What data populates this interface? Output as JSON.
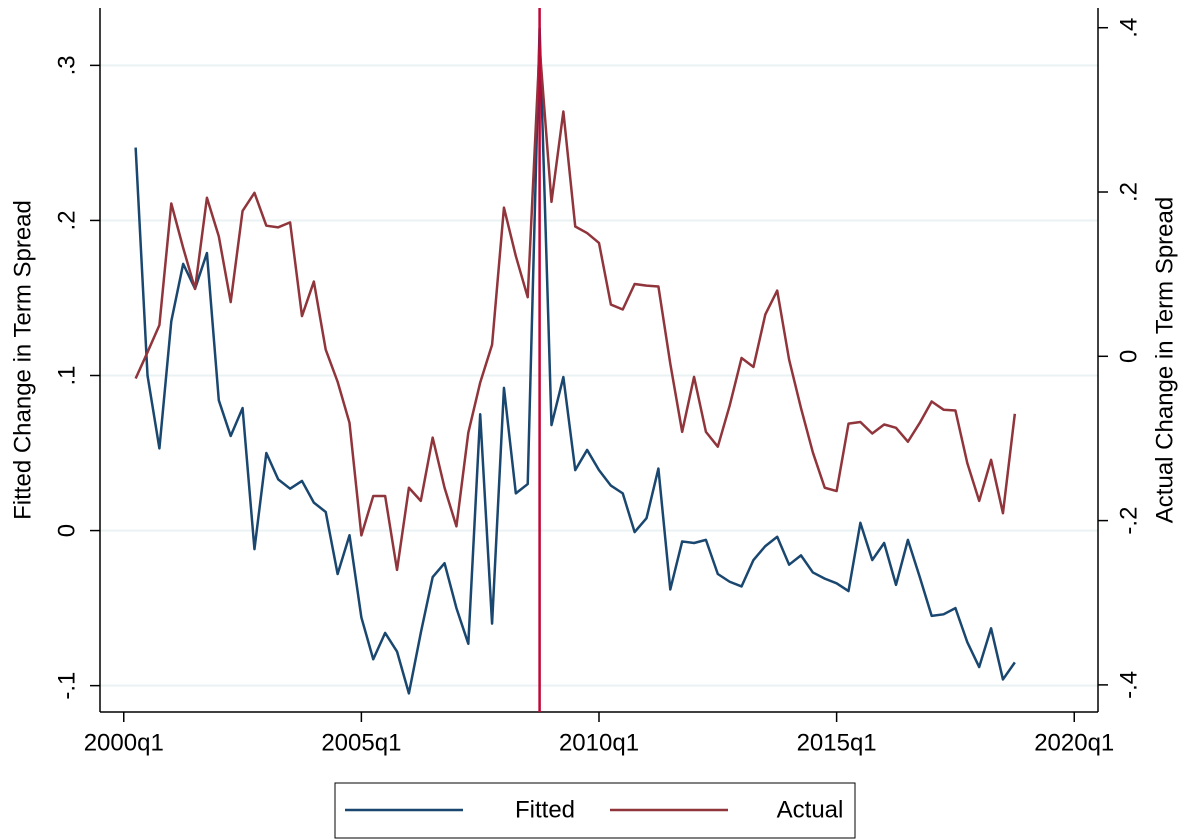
{
  "chart_data": {
    "type": "line",
    "y_label": "Fitted Change in Term Spread",
    "y2_label": "Actual Change in Term Spread",
    "x": [
      "2000q2",
      "2000q3",
      "2000q4",
      "2001q1",
      "2001q2",
      "2001q3",
      "2001q4",
      "2002q1",
      "2002q2",
      "2002q3",
      "2002q4",
      "2003q1",
      "2003q2",
      "2003q3",
      "2003q4",
      "2004q1",
      "2004q2",
      "2004q3",
      "2004q4",
      "2005q1",
      "2005q2",
      "2005q3",
      "2005q4",
      "2006q1",
      "2006q2",
      "2006q3",
      "2006q4",
      "2007q1",
      "2007q2",
      "2007q3",
      "2007q4",
      "2008q1",
      "2008q2",
      "2008q3",
      "2008q4",
      "2009q1",
      "2009q2",
      "2009q3",
      "2009q4",
      "2010q1",
      "2010q2",
      "2010q3",
      "2010q4",
      "2011q1",
      "2011q2",
      "2011q3",
      "2011q4",
      "2012q1",
      "2012q2",
      "2012q3",
      "2012q4",
      "2013q1",
      "2013q2",
      "2013q3",
      "2013q4",
      "2014q1",
      "2014q2",
      "2014q3",
      "2014q4",
      "2015q1",
      "2015q2",
      "2015q3",
      "2015q4",
      "2016q1",
      "2016q2",
      "2016q3",
      "2016q4",
      "2017q1",
      "2017q2",
      "2017q3",
      "2017q4",
      "2018q1",
      "2018q2",
      "2018q3",
      "2018q4"
    ],
    "series": [
      {
        "name": "Fitted",
        "color": "#1a476f",
        "values": [
          0.247,
          0.1,
          0.053,
          0.135,
          0.172,
          0.156,
          0.179,
          0.084,
          0.061,
          0.079,
          -0.012,
          0.05,
          0.033,
          0.027,
          0.032,
          0.018,
          0.012,
          -0.028,
          -0.003,
          -0.056,
          -0.083,
          -0.066,
          -0.078,
          -0.105,
          -0.066,
          -0.03,
          -0.021,
          -0.05,
          -0.073,
          0.075,
          -0.06,
          0.092,
          0.024,
          0.03,
          0.324,
          0.068,
          0.099,
          0.039,
          0.052,
          0.039,
          0.029,
          0.024,
          -0.001,
          0.008,
          0.04,
          -0.038,
          -0.007,
          -0.008,
          -0.006,
          -0.028,
          -0.033,
          -0.036,
          -0.019,
          -0.01,
          -0.004,
          -0.022,
          -0.016,
          -0.027,
          -0.031,
          -0.034,
          -0.039,
          0.005,
          -0.019,
          -0.008,
          -0.035,
          -0.006,
          -0.03,
          -0.055,
          -0.054,
          -0.05,
          -0.072,
          -0.088,
          -0.063,
          -0.096,
          -0.085
        ]
      },
      {
        "name": "Actual",
        "color": "#90353b",
        "axis": "y2",
        "values": [
          -0.027,
          0.005,
          0.038,
          0.186,
          0.132,
          0.082,
          0.193,
          0.146,
          0.066,
          0.177,
          0.199,
          0.159,
          0.157,
          0.163,
          0.049,
          0.091,
          0.008,
          -0.031,
          -0.081,
          -0.218,
          -0.17,
          -0.17,
          -0.26,
          -0.16,
          -0.176,
          -0.099,
          -0.16,
          -0.207,
          -0.093,
          -0.032,
          0.014,
          0.181,
          0.122,
          0.072,
          0.377,
          0.188,
          0.298,
          0.158,
          0.15,
          0.138,
          0.063,
          0.057,
          0.088,
          0.086,
          0.085,
          -0.009,
          -0.092,
          -0.025,
          -0.092,
          -0.11,
          -0.06,
          -0.002,
          -0.013,
          0.051,
          0.08,
          -0.004,
          -0.063,
          -0.117,
          -0.16,
          -0.164,
          -0.082,
          -0.08,
          -0.094,
          -0.083,
          -0.087,
          -0.104,
          -0.081,
          -0.055,
          -0.065,
          -0.066,
          -0.13,
          -0.176,
          -0.126,
          -0.191,
          -0.07
        ]
      }
    ],
    "xlim": [
      "1999q3",
      "2020q3"
    ],
    "xticks": [
      "2000q1",
      "2005q1",
      "2010q1",
      "2015q1",
      "2020q1"
    ],
    "ylim": [
      -0.117,
      0.337
    ],
    "yticks": [
      {
        "value": -0.1,
        "label": "-.1"
      },
      0,
      {
        "value": 0.1,
        "label": ".1"
      },
      {
        "value": 0.2,
        "label": ".2"
      },
      {
        "value": 0.3,
        "label": ".3"
      }
    ],
    "y2lim": [
      -0.433,
      0.424
    ],
    "y2ticks": [
      {
        "value": -0.4,
        "label": "-.4"
      },
      {
        "value": -0.2,
        "label": "-.2"
      },
      0,
      {
        "value": 0.2,
        "label": ".2"
      },
      {
        "value": 0.4,
        "label": ".4"
      }
    ],
    "vline": "2008q4",
    "vline_color": "#c10534",
    "grid": true
  }
}
